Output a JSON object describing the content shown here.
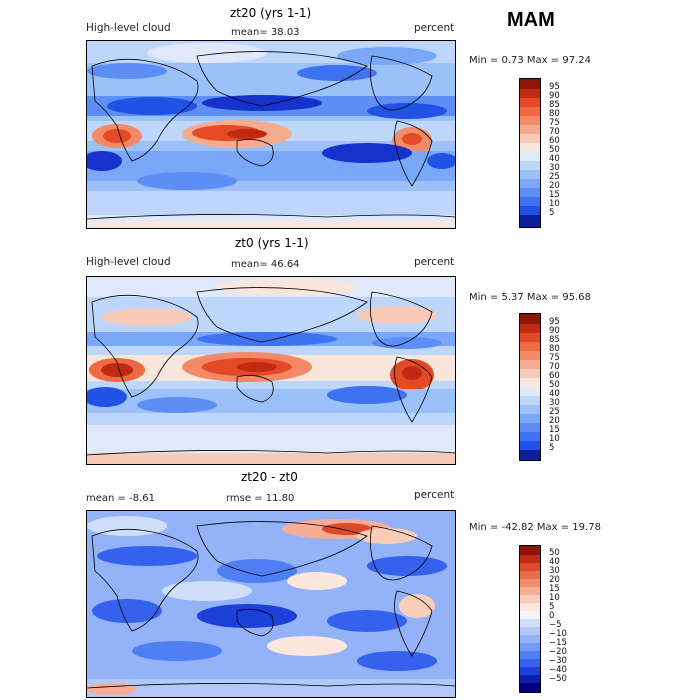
{
  "season": "MAM",
  "colors": {
    "abs": [
      "#0a1f99",
      "#1632cc",
      "#2152e6",
      "#3e72f0",
      "#5c8ef5",
      "#7aa7f7",
      "#9cc0f8",
      "#bdd6f9",
      "#dfe9fa",
      "#f8e5dc",
      "#f7cbb8",
      "#f5ab90",
      "#f28a68",
      "#ed6a45",
      "#e44a26",
      "#c02a12",
      "#8e1407"
    ],
    "diff": [
      "#00007e",
      "#0d1eb0",
      "#1e3fd8",
      "#3462ec",
      "#4f80f3",
      "#7399f5",
      "#93b2f7",
      "#b0c9f8",
      "#d0dff9",
      "#f0f4fc",
      "#fbe7dc",
      "#f8ceba",
      "#f5ae95",
      "#f08d6e",
      "#e86d4d",
      "#dc4a2e",
      "#be2a14",
      "#8e1408"
    ]
  },
  "panels": [
    {
      "title": "zt20 (yrs 1-1)",
      "left_label": "High-level cloud",
      "center_label": "mean=   38.03",
      "right_label": "percent",
      "minmax": "Min =    0.73 Max =   97.24",
      "colorbar": [
        "95",
        "90",
        "85",
        "80",
        "75",
        "70",
        "60",
        "50",
        "40",
        "30",
        "25",
        "20",
        "15",
        "10",
        "5"
      ]
    },
    {
      "title": "zt0 (yrs 1-1)",
      "left_label": "High-level cloud",
      "center_label": "mean=   46.64",
      "right_label": "percent",
      "minmax": "Min =    5.37 Max =   95.68",
      "colorbar": [
        "95",
        "90",
        "85",
        "80",
        "75",
        "70",
        "60",
        "50",
        "40",
        "30",
        "25",
        "20",
        "15",
        "10",
        "5"
      ]
    },
    {
      "title": "zt20 - zt0",
      "left_label": "mean =   -8.61",
      "center_label": "rmse =   11.80",
      "right_label": "percent",
      "minmax": "Min = -42.82 Max =   19.78",
      "colorbar": [
        "50",
        "40",
        "30",
        "20",
        "15",
        "10",
        "5",
        "0",
        "−5",
        "−10",
        "−15",
        "−20",
        "−30",
        "−40",
        "−50"
      ]
    }
  ]
}
